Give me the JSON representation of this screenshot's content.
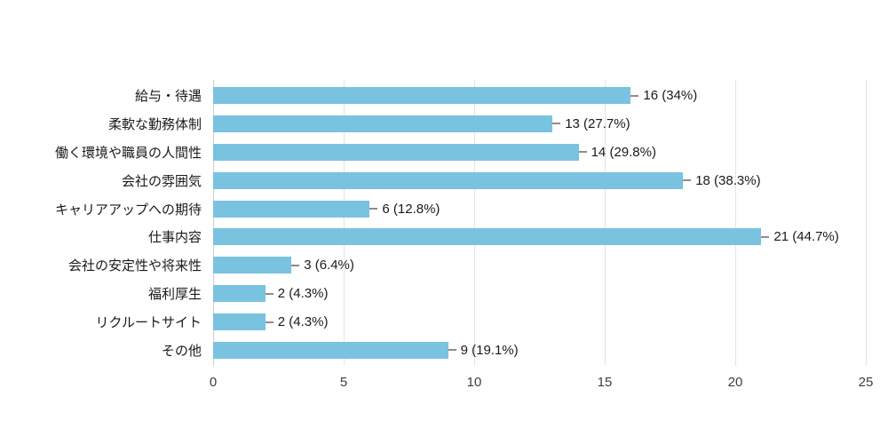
{
  "chart_data": {
    "type": "bar",
    "orientation": "horizontal",
    "title": "",
    "xlabel": "",
    "ylabel": "",
    "categories": [
      "給与・待遇",
      "柔軟な勤務体制",
      "働く環境や職員の人間性",
      "会社の雰囲気",
      "キャリアアップへの期待",
      "仕事内容",
      "会社の安定性や将来性",
      "福利厚生",
      "リクルートサイト",
      "その他"
    ],
    "values": [
      16,
      13,
      14,
      18,
      6,
      21,
      3,
      2,
      2,
      9
    ],
    "value_labels": [
      "16 (34%)",
      "13 (27.7%)",
      "14 (29.8%)",
      "18 (38.3%)",
      "6 (12.8%)",
      "21 (44.7%)",
      "3 (6.4%)",
      "2 (4.3%)",
      "2 (4.3%)",
      "9 (19.1%)"
    ],
    "xticks": [
      0,
      5,
      10,
      15,
      20,
      25
    ],
    "xlim": [
      0,
      25
    ],
    "grid": true,
    "legend": false,
    "bar_color": "#79c3e1"
  }
}
